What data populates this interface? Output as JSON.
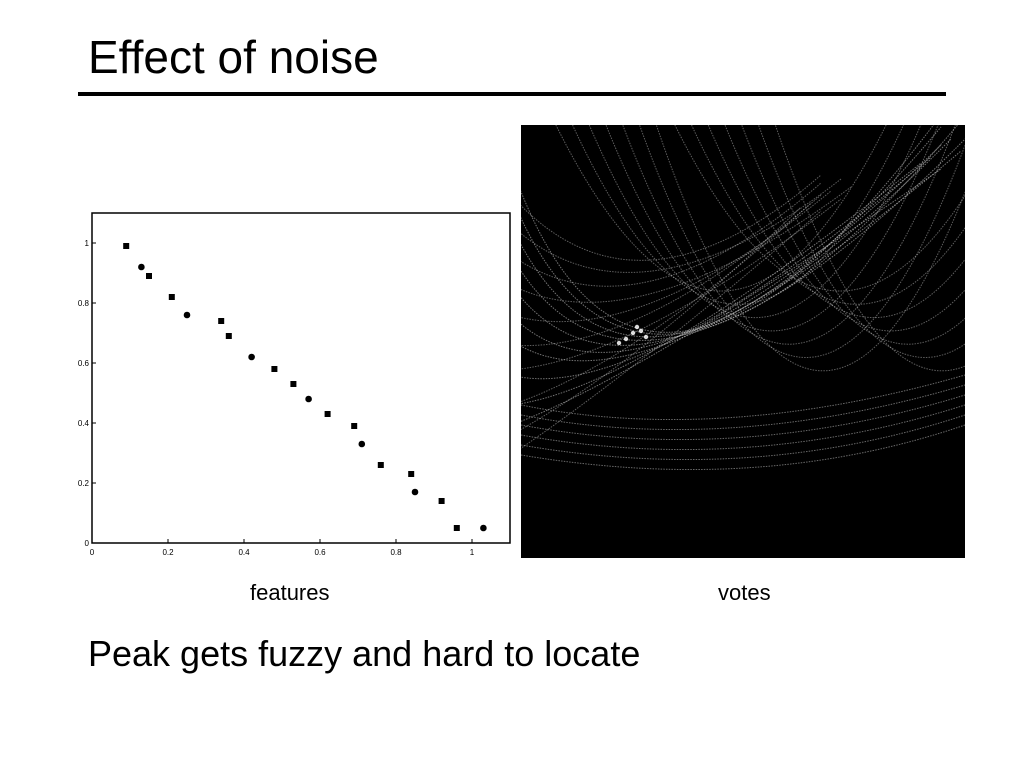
{
  "slide": {
    "title": "Effect of noise",
    "caption_left": "features",
    "caption_right": "votes",
    "body_text": "Peak gets fuzzy and hard to locate"
  },
  "colors": {
    "background": "#ffffff",
    "text": "#000000",
    "votes_background": "#000000",
    "votes_curves": "#cfcfcf"
  },
  "chart_data": {
    "type": "scatter",
    "xlim": [
      0,
      1.1
    ],
    "ylim": [
      0,
      1.1
    ],
    "xticks": [
      0,
      0.2,
      0.4,
      0.6,
      0.8,
      1
    ],
    "yticks": [
      0,
      0.2,
      0.4,
      0.6,
      0.8,
      1
    ],
    "xtick_labels": [
      "0",
      "0.2",
      "0.4",
      "0.6",
      "0.8",
      "1"
    ],
    "ytick_labels": [
      "0",
      "0.2",
      "0.4",
      "0.6",
      "0.8",
      "1"
    ],
    "grid": false,
    "series": [
      {
        "x": [
          0.09,
          0.13,
          0.15,
          0.21,
          0.25,
          0.34,
          0.36,
          0.42,
          0.48,
          0.53,
          0.57,
          0.62,
          0.69,
          0.71,
          0.76,
          0.84,
          0.85,
          0.92,
          0.96,
          1.03
        ],
        "y": [
          0.99,
          0.92,
          0.89,
          0.82,
          0.76,
          0.74,
          0.69,
          0.62,
          0.58,
          0.53,
          0.48,
          0.43,
          0.39,
          0.33,
          0.26,
          0.23,
          0.17,
          0.14,
          0.05,
          0.05
        ]
      }
    ]
  }
}
